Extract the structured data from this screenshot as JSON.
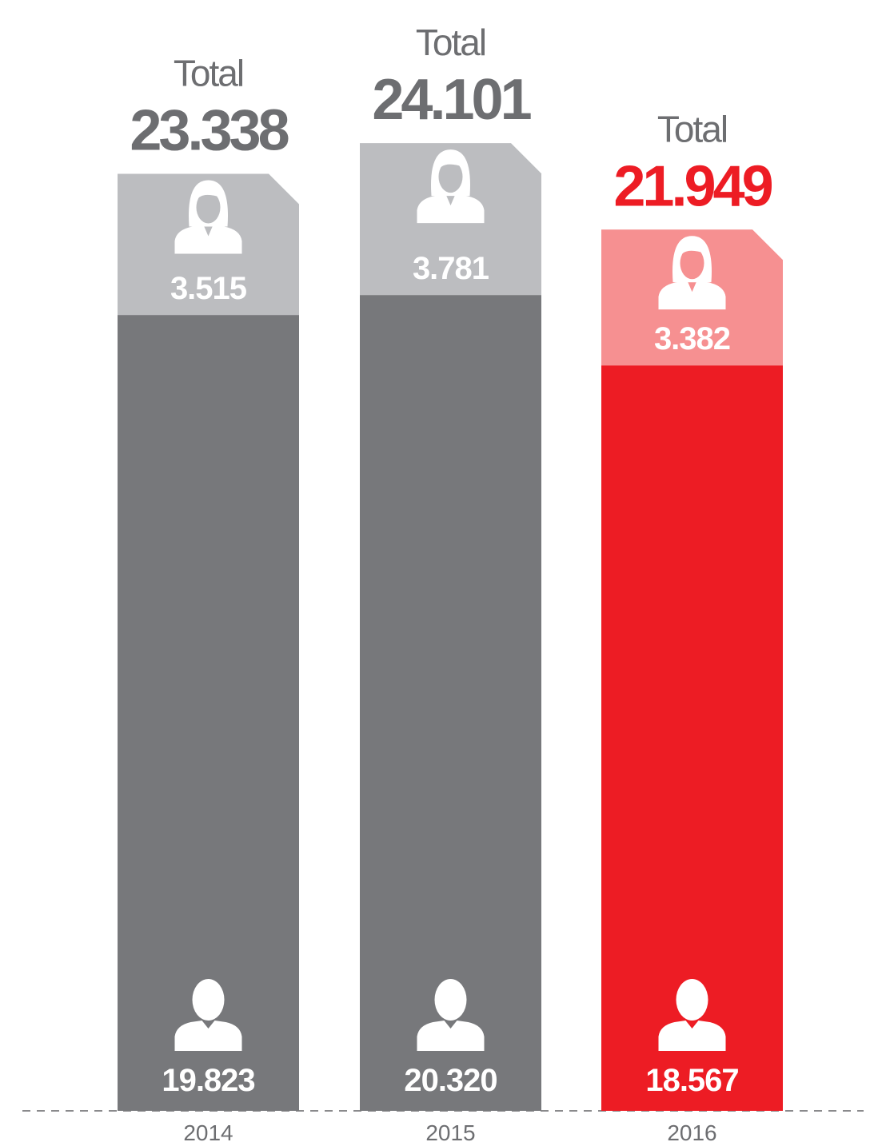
{
  "chart_data": {
    "type": "stacked-bar",
    "categories": [
      "2014",
      "2015",
      "2016"
    ],
    "series": [
      {
        "name": null,
        "color": [
          "#77787b",
          "#77787b",
          "#ed1c24"
        ],
        "values": [
          19823,
          20320,
          18567
        ],
        "value_labels": [
          "19.823",
          "20.320",
          "18.567"
        ]
      },
      {
        "name": null,
        "color": [
          "#bcbdc0",
          "#bcbdc0",
          "#f69091"
        ],
        "values": [
          3515,
          3781,
          3382
        ],
        "value_labels": [
          "3.515",
          "3.781",
          "3.382"
        ]
      }
    ],
    "total_label": "Total",
    "totals": {
      "values": [
        23338,
        24101,
        21949
      ],
      "value_labels": [
        "23.338",
        "24.101",
        "21.949"
      ],
      "color": [
        "#6d6e71",
        "#6d6e71",
        "#ed1c24"
      ]
    },
    "ylim": [
      0,
      27667
    ]
  }
}
